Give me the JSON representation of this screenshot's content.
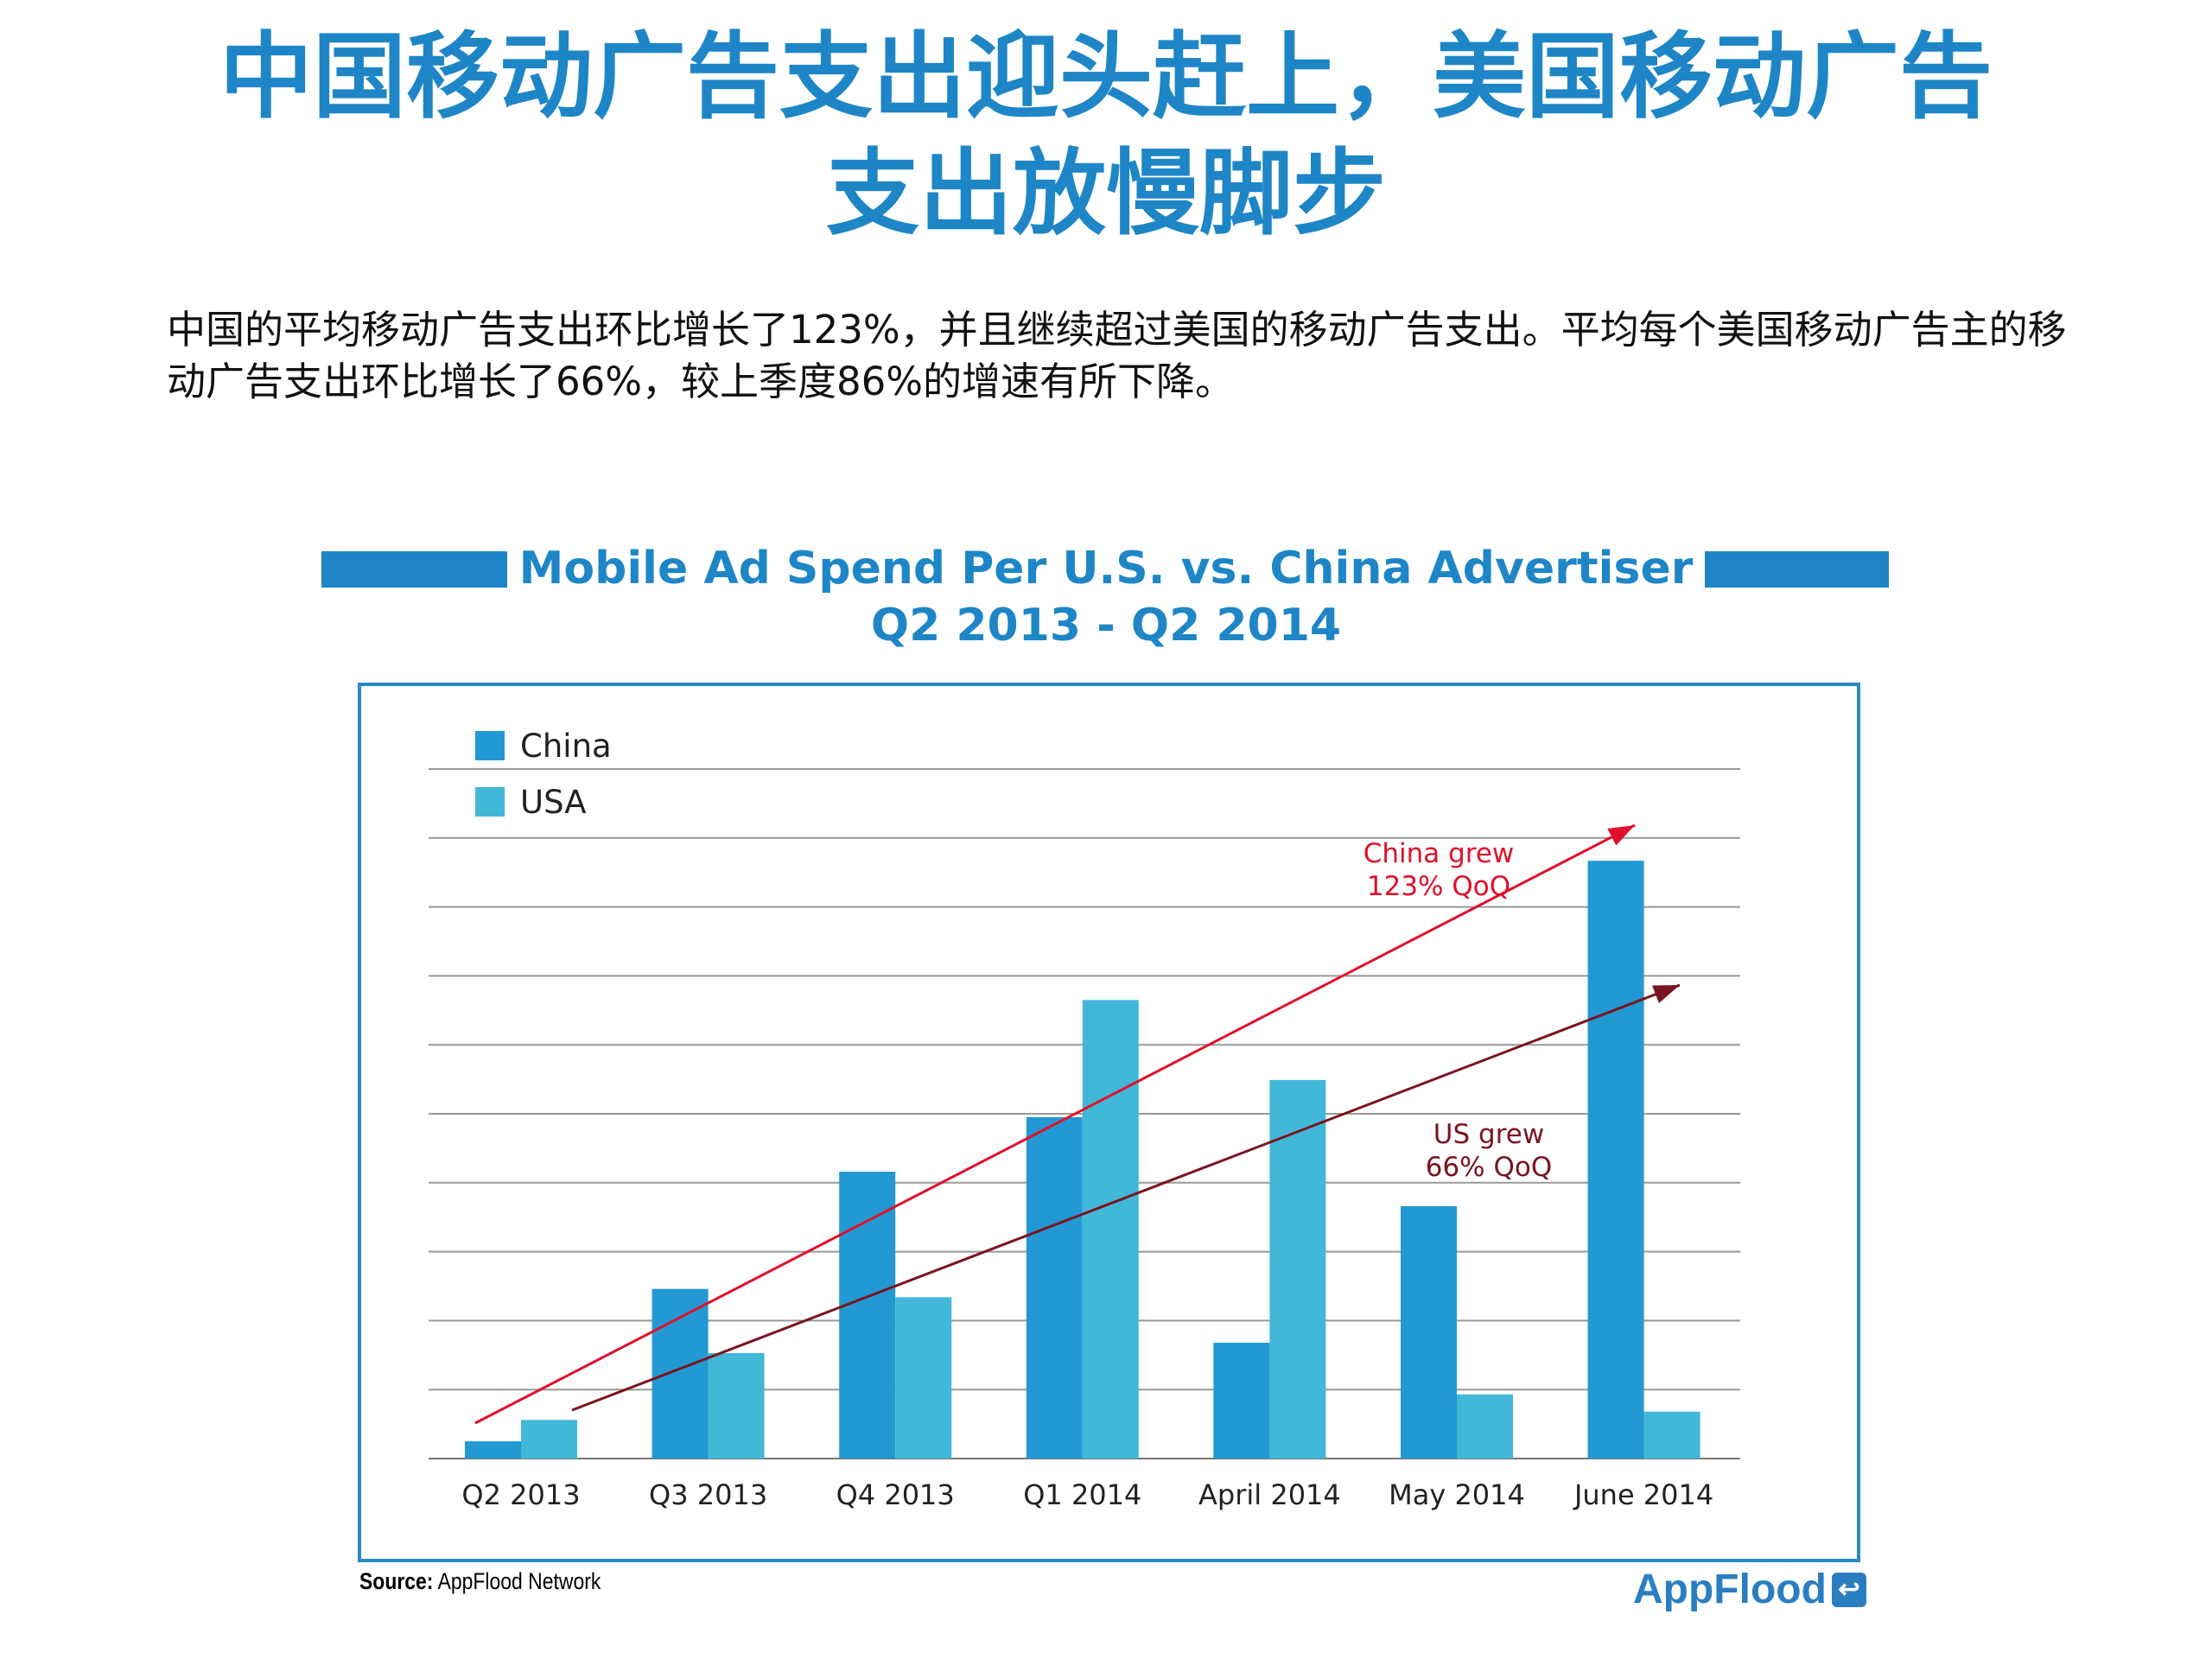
{
  "header": {
    "title_line1": "中国移动广告支出迎头赶上，美国移动广告",
    "title_line2": "支出放慢脚步",
    "paragraph": "中国的平均移动广告支出环比增长了123%，并且继续超过美国的移动广告支出。平均每个美国移动广告主的移动广告支出环比增长了66%，较上季度86%的增速有所下降。"
  },
  "chart_data": {
    "type": "bar",
    "title": "Mobile Ad Spend Per U.S. vs. China Advertiser",
    "subtitle": "Q2 2013 - Q2 2014",
    "categories": [
      "Q2 2013",
      "Q3 2013",
      "Q4 2013",
      "Q1 2014",
      "April 2014",
      "May 2014",
      "June 2014"
    ],
    "series": [
      {
        "name": "China",
        "color": "#2299d2",
        "values": [
          0.25,
          2.46,
          4.16,
          4.95,
          1.68,
          3.66,
          8.67
        ]
      },
      {
        "name": "USA",
        "color": "#42b8d8",
        "values": [
          0.56,
          1.53,
          2.34,
          6.65,
          5.49,
          0.93,
          0.68
        ]
      }
    ],
    "xlabel": "",
    "ylabel": "",
    "ylim": [
      0,
      10
    ],
    "grid": true,
    "legend": "top-left",
    "annotations": [
      {
        "line1": "China grew",
        "line2": "123% QoQ",
        "color": "#e0102a"
      },
      {
        "line1": "US grew",
        "line2": "66% QoQ",
        "color": "#7a1420"
      }
    ]
  },
  "footer": {
    "source_label": "Source:",
    "source_value": "AppFlood Network",
    "logo": "AppFlood"
  }
}
